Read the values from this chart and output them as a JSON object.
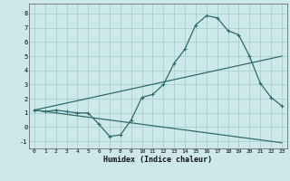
{
  "xlabel": "Humidex (Indice chaleur)",
  "bg_color": "#cce8e8",
  "line_color": "#2e6b6b",
  "grid_color": "#aad0d0",
  "xlim": [
    -0.5,
    23.5
  ],
  "ylim": [
    -1.5,
    8.7
  ],
  "xticks": [
    0,
    1,
    2,
    3,
    4,
    5,
    6,
    7,
    8,
    9,
    10,
    11,
    12,
    13,
    14,
    15,
    16,
    17,
    18,
    19,
    20,
    21,
    22,
    23
  ],
  "yticks": [
    -1,
    0,
    1,
    2,
    3,
    4,
    5,
    6,
    7,
    8
  ],
  "line1_x": [
    0,
    1,
    2,
    3,
    4,
    5,
    6,
    7,
    8,
    9,
    10,
    11,
    12,
    13,
    14,
    15,
    16,
    17,
    18,
    19,
    20,
    21,
    22,
    23
  ],
  "line1_y": [
    1.2,
    1.1,
    1.2,
    1.1,
    1.0,
    1.0,
    0.2,
    -0.65,
    -0.55,
    0.5,
    2.1,
    2.3,
    3.0,
    4.5,
    5.5,
    7.2,
    7.85,
    7.7,
    6.8,
    6.5,
    5.0,
    3.1,
    2.1,
    1.5
  ],
  "line2_x": [
    0,
    23
  ],
  "line2_y": [
    1.2,
    5.0
  ],
  "line3_x": [
    0,
    23
  ],
  "line3_y": [
    1.2,
    -1.1
  ]
}
